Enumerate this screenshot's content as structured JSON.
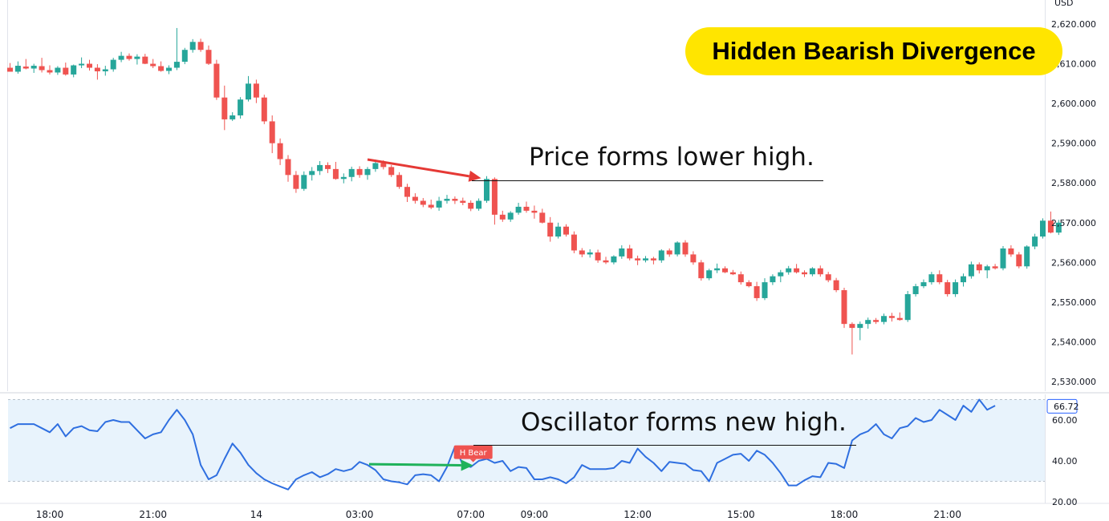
{
  "chart_data": [
    {
      "type": "candlestick",
      "title": "Hidden Bearish Divergence",
      "currency": "USD",
      "ylim": [
        2528,
        2625
      ],
      "y_ticks": [
        "2,620.000",
        "2,610.000",
        "2,600.000",
        "2,590.000",
        "2,580.000",
        "2,570.000",
        "2,560.000",
        "2,550.000",
        "2,540.000",
        "2,530.000"
      ],
      "y_tick_values": [
        2620,
        2610,
        2600,
        2590,
        2580,
        2570,
        2560,
        2550,
        2540,
        2530
      ],
      "x_ticks": [
        "18:00",
        "21:00",
        "14",
        "03:00",
        "07:00",
        "09:00",
        "12:00",
        "15:00",
        "18:00",
        "21:00"
      ],
      "colors": {
        "up": "#26a69a",
        "down": "#ef5350"
      },
      "candles": [
        [
          2609.0,
          2610.2,
          2608.2,
          2608.0
        ],
        [
          2608.0,
          2610.6,
          2607.5,
          2609.5
        ],
        [
          2609.3,
          2611.2,
          2608.6,
          2608.8
        ],
        [
          2608.8,
          2610.0,
          2607.7,
          2609.5
        ],
        [
          2609.4,
          2611.5,
          2607.8,
          2608.4
        ],
        [
          2608.4,
          2609.6,
          2607.3,
          2607.8
        ],
        [
          2607.8,
          2609.4,
          2607.2,
          2609.0
        ],
        [
          2609.0,
          2610.3,
          2607.0,
          2607.3
        ],
        [
          2607.3,
          2609.8,
          2606.6,
          2609.6
        ],
        [
          2609.6,
          2611.6,
          2608.9,
          2610.0
        ],
        [
          2610.0,
          2611.0,
          2608.3,
          2609.0
        ],
        [
          2609.0,
          2609.9,
          2606.0,
          2608.1
        ],
        [
          2608.1,
          2609.5,
          2607.0,
          2608.6
        ],
        [
          2608.6,
          2611.5,
          2608.0,
          2611.0
        ],
        [
          2611.0,
          2613.0,
          2610.4,
          2612.0
        ],
        [
          2612.0,
          2612.6,
          2610.8,
          2611.2
        ],
        [
          2611.2,
          2612.4,
          2609.8,
          2611.8
        ],
        [
          2611.8,
          2612.5,
          2609.9,
          2610.0
        ],
        [
          2610.0,
          2611.2,
          2608.9,
          2609.4
        ],
        [
          2609.4,
          2610.6,
          2608.0,
          2608.2
        ],
        [
          2608.2,
          2609.6,
          2607.4,
          2609.0
        ],
        [
          2609.0,
          2619.0,
          2608.4,
          2610.5
        ],
        [
          2610.5,
          2614.0,
          2609.9,
          2613.5
        ],
        [
          2613.5,
          2616.2,
          2612.8,
          2615.5
        ],
        [
          2615.5,
          2616.3,
          2613.0,
          2613.5
        ],
        [
          2613.5,
          2614.6,
          2609.7,
          2610.0
        ],
        [
          2610.0,
          2611.0,
          2600.9,
          2601.5
        ],
        [
          2601.5,
          2604.5,
          2593.3,
          2596.0
        ],
        [
          2596.0,
          2597.8,
          2595.6,
          2597.0
        ],
        [
          2597.0,
          2601.6,
          2596.2,
          2601.0
        ],
        [
          2601.0,
          2606.9,
          2600.5,
          2605.0
        ],
        [
          2605.0,
          2606.0,
          2600.1,
          2601.5
        ],
        [
          2601.5,
          2602.2,
          2594.8,
          2595.5
        ],
        [
          2595.5,
          2597.0,
          2587.5,
          2590.0
        ],
        [
          2590.0,
          2591.2,
          2584.5,
          2586.0
        ],
        [
          2586.0,
          2587.0,
          2580.3,
          2582.0
        ],
        [
          2582.0,
          2583.0,
          2577.5,
          2578.5
        ],
        [
          2578.5,
          2582.9,
          2578.0,
          2582.0
        ],
        [
          2582.0,
          2584.0,
          2580.6,
          2583.0
        ],
        [
          2583.0,
          2585.5,
          2582.0,
          2584.5
        ],
        [
          2584.5,
          2585.2,
          2582.5,
          2583.5
        ],
        [
          2583.5,
          2585.3,
          2580.8,
          2581.0
        ],
        [
          2581.0,
          2582.4,
          2579.9,
          2581.5
        ],
        [
          2581.5,
          2584.1,
          2580.4,
          2583.5
        ],
        [
          2583.5,
          2584.2,
          2581.3,
          2582.0
        ],
        [
          2582.0,
          2584.0,
          2580.8,
          2583.5
        ],
        [
          2583.5,
          2585.9,
          2582.8,
          2585.0
        ],
        [
          2585.0,
          2585.7,
          2583.4,
          2584.0
        ],
        [
          2584.0,
          2584.5,
          2581.5,
          2582.0
        ],
        [
          2582.0,
          2582.7,
          2578.5,
          2579.0
        ],
        [
          2579.0,
          2579.8,
          2575.2,
          2576.5
        ],
        [
          2576.5,
          2577.4,
          2574.8,
          2575.5
        ],
        [
          2575.5,
          2576.2,
          2573.9,
          2574.5
        ],
        [
          2574.5,
          2575.8,
          2573.4,
          2573.8
        ],
        [
          2573.8,
          2576.5,
          2573.0,
          2575.5
        ],
        [
          2575.5,
          2577.0,
          2574.8,
          2576.0
        ],
        [
          2576.0,
          2576.6,
          2574.7,
          2575.5
        ],
        [
          2575.5,
          2576.3,
          2574.4,
          2575.0
        ],
        [
          2575.0,
          2575.6,
          2572.9,
          2573.5
        ],
        [
          2573.5,
          2576.1,
          2573.0,
          2575.5
        ],
        [
          2575.5,
          2581.7,
          2575.0,
          2581.0
        ],
        [
          2581.0,
          2581.4,
          2569.5,
          2572.0
        ],
        [
          2572.0,
          2573.0,
          2570.2,
          2570.8
        ],
        [
          2570.8,
          2572.9,
          2570.2,
          2572.5
        ],
        [
          2572.5,
          2575.0,
          2572.0,
          2574.0
        ],
        [
          2574.0,
          2575.3,
          2572.5,
          2573.0
        ],
        [
          2573.0,
          2574.3,
          2571.0,
          2572.5
        ],
        [
          2572.5,
          2573.5,
          2569.8,
          2570.0
        ],
        [
          2570.0,
          2571.4,
          2565.2,
          2566.5
        ],
        [
          2566.5,
          2570.0,
          2566.0,
          2569.0
        ],
        [
          2569.0,
          2569.6,
          2566.5,
          2567.0
        ],
        [
          2567.0,
          2567.8,
          2562.3,
          2563.0
        ],
        [
          2563.0,
          2563.6,
          2561.3,
          2562.0
        ],
        [
          2562.0,
          2563.3,
          2561.2,
          2562.5
        ],
        [
          2562.5,
          2563.2,
          2559.9,
          2560.5
        ],
        [
          2560.5,
          2561.4,
          2559.6,
          2560.0
        ],
        [
          2560.0,
          2561.8,
          2559.5,
          2561.5
        ],
        [
          2561.5,
          2564.3,
          2560.9,
          2563.5
        ],
        [
          2563.5,
          2564.4,
          2560.5,
          2561.0
        ],
        [
          2561.0,
          2561.7,
          2559.3,
          2560.5
        ],
        [
          2560.5,
          2561.6,
          2560.0,
          2561.0
        ],
        [
          2561.0,
          2561.4,
          2559.5,
          2560.5
        ],
        [
          2560.5,
          2563.3,
          2559.9,
          2563.0
        ],
        [
          2563.0,
          2563.5,
          2561.4,
          2562.0
        ],
        [
          2562.0,
          2565.3,
          2561.5,
          2565.0
        ],
        [
          2565.0,
          2565.6,
          2561.4,
          2562.0
        ],
        [
          2562.0,
          2562.8,
          2559.4,
          2560.0
        ],
        [
          2560.0,
          2560.6,
          2555.4,
          2556.0
        ],
        [
          2556.0,
          2558.4,
          2555.5,
          2558.0
        ],
        [
          2558.0,
          2559.7,
          2557.3,
          2558.5
        ],
        [
          2558.5,
          2559.0,
          2557.3,
          2557.5
        ],
        [
          2557.5,
          2558.1,
          2556.8,
          2557.0
        ],
        [
          2557.0,
          2557.7,
          2554.4,
          2555.0
        ],
        [
          2555.0,
          2555.5,
          2553.7,
          2554.0
        ],
        [
          2554.0,
          2555.1,
          2550.3,
          2551.0
        ],
        [
          2551.0,
          2556.0,
          2550.5,
          2555.0
        ],
        [
          2555.0,
          2557.0,
          2554.3,
          2556.5
        ],
        [
          2556.5,
          2558.1,
          2555.0,
          2557.5
        ],
        [
          2557.5,
          2559.1,
          2556.9,
          2558.5
        ],
        [
          2558.5,
          2559.6,
          2557.2,
          2557.5
        ],
        [
          2557.5,
          2558.0,
          2556.3,
          2557.0
        ],
        [
          2557.0,
          2558.8,
          2556.5,
          2558.5
        ],
        [
          2558.5,
          2559.2,
          2556.4,
          2557.0
        ],
        [
          2557.0,
          2557.6,
          2555.0,
          2555.5
        ],
        [
          2555.5,
          2556.1,
          2552.5,
          2553.0
        ],
        [
          2553.0,
          2553.6,
          2543.5,
          2544.5
        ],
        [
          2544.5,
          2544.9,
          2536.8,
          2543.5
        ],
        [
          2543.5,
          2545.1,
          2540.4,
          2544.5
        ],
        [
          2544.5,
          2546.1,
          2543.3,
          2545.5
        ],
        [
          2545.5,
          2546.0,
          2544.5,
          2545.0
        ],
        [
          2545.0,
          2547.1,
          2544.4,
          2546.5
        ],
        [
          2546.5,
          2547.3,
          2545.1,
          2546.0
        ],
        [
          2546.0,
          2547.4,
          2545.3,
          2545.5
        ],
        [
          2545.5,
          2552.8,
          2545.0,
          2552.0
        ],
        [
          2552.0,
          2554.6,
          2551.4,
          2554.0
        ],
        [
          2554.0,
          2555.7,
          2553.5,
          2555.0
        ],
        [
          2555.0,
          2557.6,
          2554.4,
          2557.0
        ],
        [
          2557.0,
          2558.0,
          2554.5,
          2555.0
        ],
        [
          2555.0,
          2555.6,
          2551.4,
          2552.0
        ],
        [
          2552.0,
          2555.7,
          2551.3,
          2555.0
        ],
        [
          2555.0,
          2557.2,
          2553.9,
          2556.5
        ],
        [
          2556.5,
          2560.2,
          2555.9,
          2559.5
        ],
        [
          2559.5,
          2560.0,
          2557.2,
          2558.0
        ],
        [
          2558.0,
          2559.4,
          2556.0,
          2559.0
        ],
        [
          2559.0,
          2559.6,
          2558.2,
          2558.5
        ],
        [
          2558.5,
          2564.1,
          2558.0,
          2563.5
        ],
        [
          2563.5,
          2564.3,
          2561.4,
          2562.0
        ],
        [
          2562.0,
          2562.6,
          2558.5,
          2559.0
        ],
        [
          2559.0,
          2564.3,
          2558.4,
          2564.0
        ],
        [
          2564.0,
          2567.2,
          2563.3,
          2566.5
        ],
        [
          2566.5,
          2571.1,
          2566.0,
          2570.5
        ],
        [
          2570.5,
          2572.8,
          2567.3,
          2567.5
        ],
        [
          2567.5,
          2570.7,
          2566.9,
          2570.0
        ]
      ]
    },
    {
      "type": "line",
      "name": "oscillator",
      "ylim": [
        20,
        66
      ],
      "y_ticks": [
        "60.00",
        "40.00",
        "20.00"
      ],
      "y_tick_values": [
        60,
        40,
        20
      ],
      "last_value_label": "66.72",
      "last_value": 66.72,
      "band_range": [
        30,
        70
      ],
      "label_badge": "H Bear",
      "values": [
        56.0,
        58.0,
        58.0,
        58.0,
        56.0,
        54.0,
        58.0,
        52.0,
        56.0,
        57.0,
        55.0,
        54.5,
        59.0,
        60.0,
        59.0,
        59.0,
        55.0,
        51.0,
        53.0,
        54.0,
        60.0,
        65.0,
        60.0,
        53.0,
        38.0,
        31.0,
        33.0,
        41.0,
        48.5,
        44.0,
        38.0,
        34.0,
        31.0,
        29.0,
        27.5,
        26.0,
        31.0,
        33.0,
        34.5,
        32.0,
        33.5,
        36.0,
        35.0,
        36.0,
        39.5,
        38.0,
        35.5,
        31.0,
        30.0,
        29.5,
        28.5,
        33.0,
        33.5,
        33.0,
        30.0,
        37.0,
        47.0,
        38.0,
        37.0,
        40.0,
        41.0,
        39.0,
        40.0,
        35.0,
        37.0,
        36.5,
        31.0,
        31.0,
        32.0,
        31.0,
        29.0,
        32.0,
        38.0,
        36.0,
        36.0,
        36.0,
        36.5,
        40.0,
        39.0,
        46.0,
        42.0,
        39.0,
        35.0,
        39.5,
        39.0,
        38.5,
        35.5,
        35.0,
        30.0,
        39.0,
        41.0,
        43.0,
        43.5,
        40.0,
        45.0,
        43.0,
        39.0,
        34.0,
        28.0,
        28.0,
        30.5,
        32.5,
        32.0,
        39.0,
        38.5,
        36.5,
        50.0,
        53.0,
        54.5,
        58.0,
        53.0,
        51.0,
        56.0,
        57.0,
        61.0,
        59.0,
        60.0,
        65.0,
        62.5,
        60.0,
        67.0,
        64.0,
        70.0,
        65.0,
        67.0
      ]
    }
  ],
  "annotations": {
    "price_text": "Price forms lower high.",
    "osc_text": "Oscillator forms new high.",
    "title": "Hidden Bearish Divergence"
  }
}
